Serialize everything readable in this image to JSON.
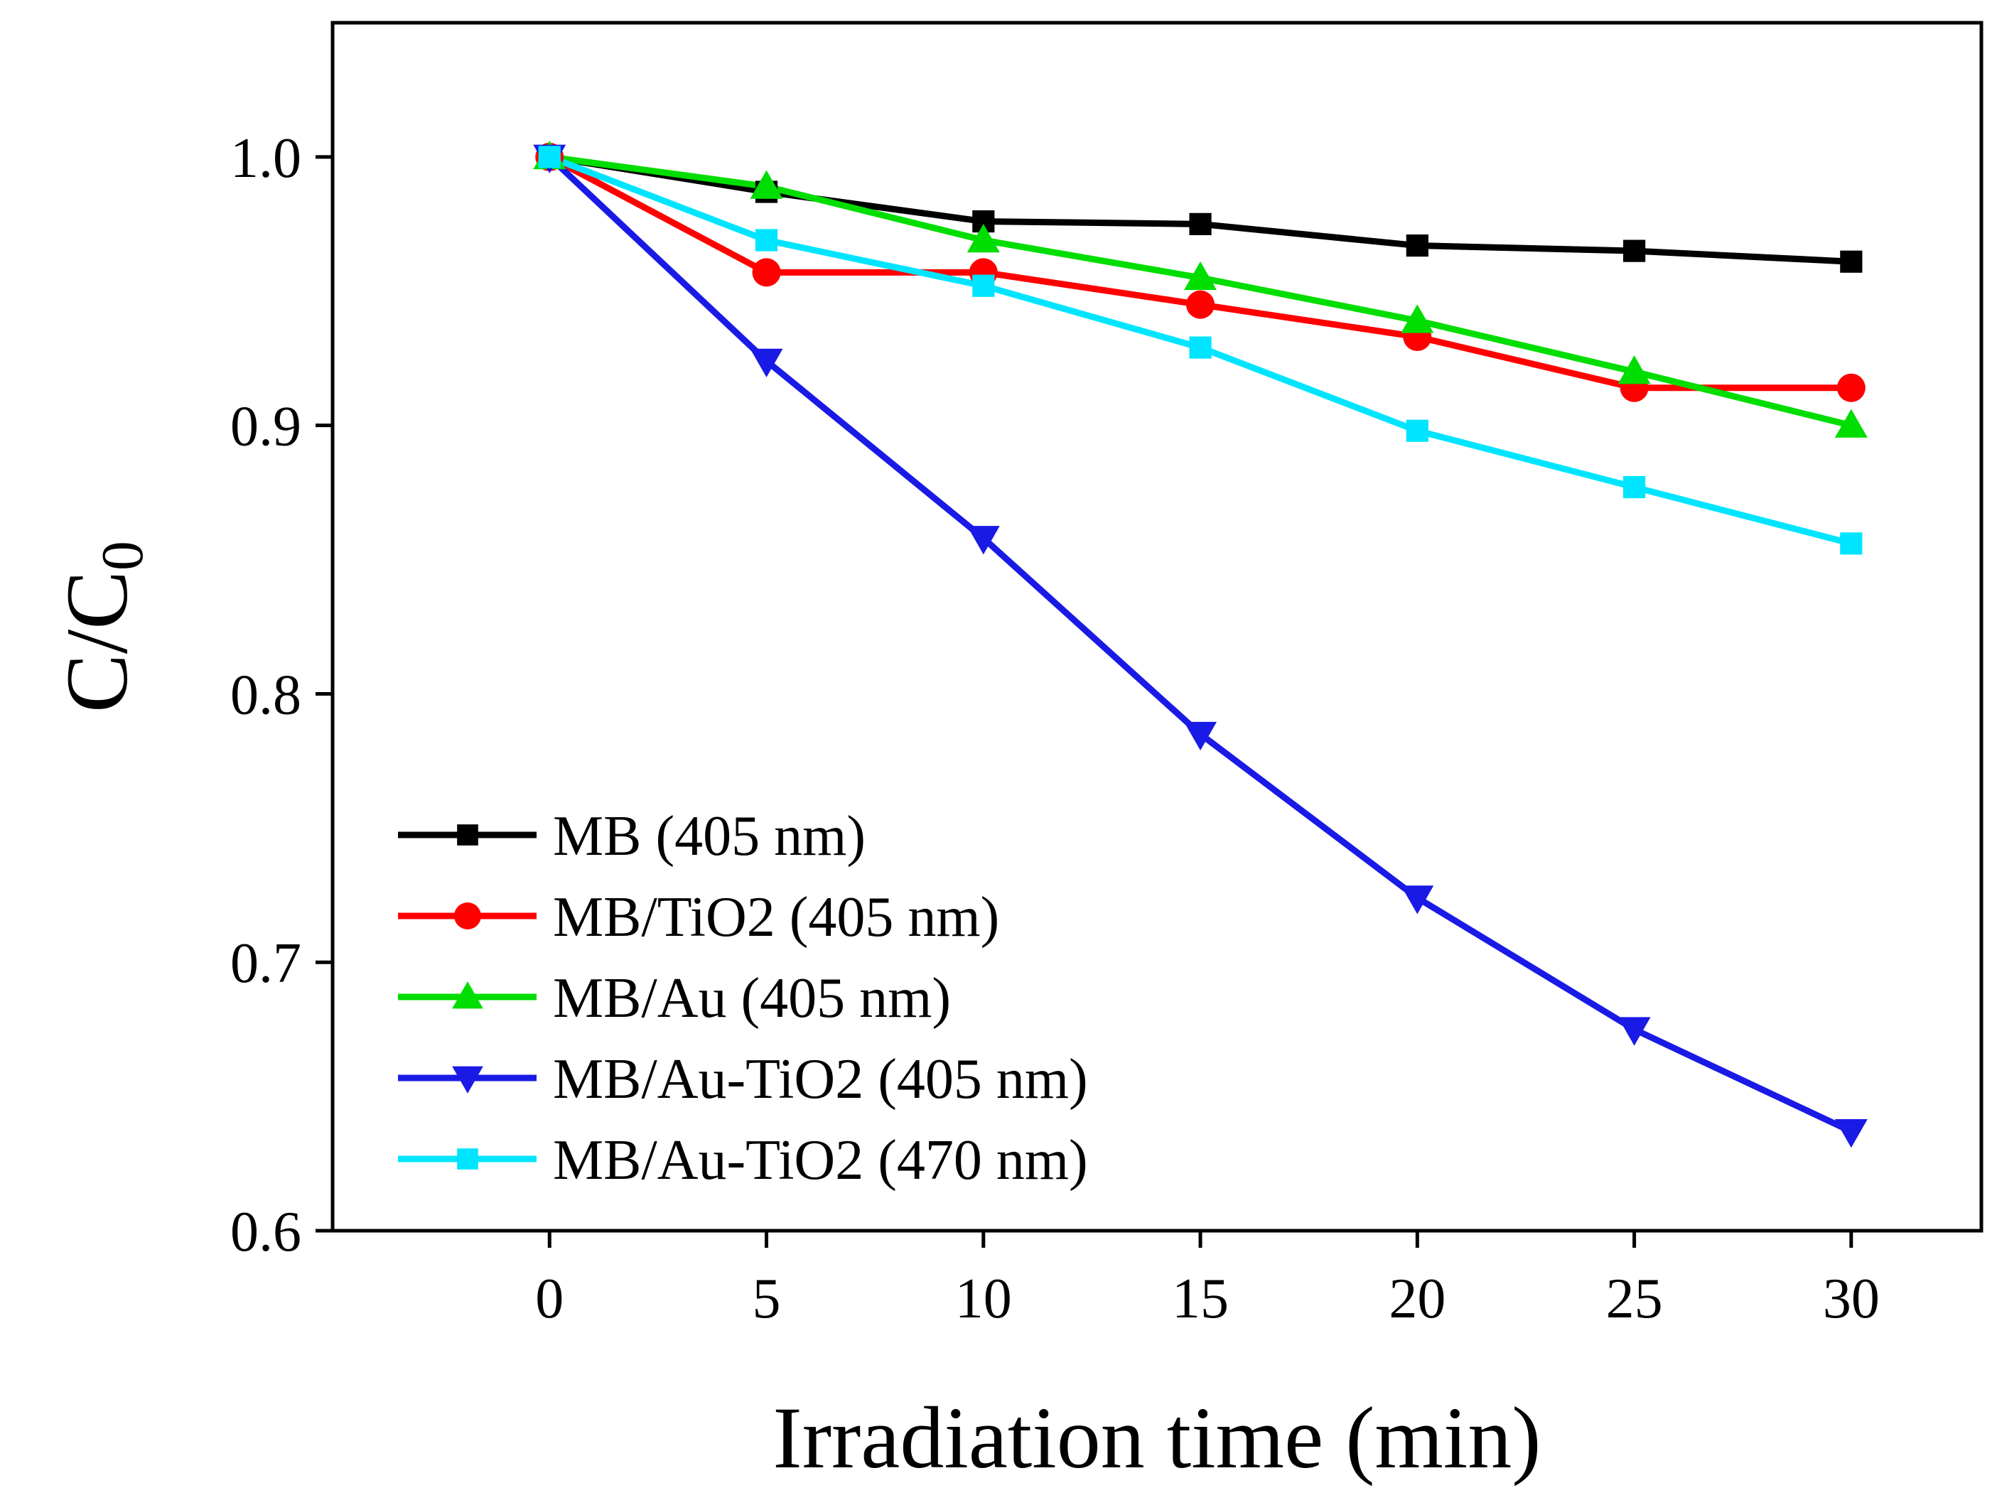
{
  "chart_data": {
    "type": "line",
    "title": "",
    "xlabel": "Irradiation time (min)",
    "ylabel": {
      "main": "C/C",
      "subscript": "0"
    },
    "xlim": [
      -5,
      33
    ],
    "ylim": [
      0.6,
      1.05
    ],
    "xticks": [
      0,
      5,
      10,
      15,
      20,
      25,
      30
    ],
    "xtick_labels": [
      "0",
      "5",
      "10",
      "15",
      "20",
      "25",
      "30"
    ],
    "yticks": [
      0.6,
      0.7,
      0.8,
      0.9,
      1.0
    ],
    "ytick_labels": [
      "0.6",
      "0.7",
      "0.8",
      "0.9",
      "1.0"
    ],
    "grid": false,
    "legend_position": "bottom-left",
    "x": [
      0,
      5,
      10,
      15,
      20,
      25,
      30
    ],
    "series": [
      {
        "name": "MB (405 nm)",
        "color": "#000000",
        "marker": "square",
        "values": [
          1.0,
          0.987,
          0.976,
          0.975,
          0.967,
          0.965,
          0.961
        ]
      },
      {
        "name": "MB/TiO2 (405 nm)",
        "color": "#ff0000",
        "marker": "circle",
        "values": [
          1.0,
          0.957,
          0.957,
          0.945,
          0.933,
          0.914,
          0.914
        ]
      },
      {
        "name": "MB/Au (405 nm)",
        "color": "#00dd00",
        "marker": "triangle-up",
        "values": [
          1.0,
          0.989,
          0.969,
          0.955,
          0.939,
          0.92,
          0.9
        ]
      },
      {
        "name": "MB/Au-TiO2 (405 nm)",
        "color": "#1a1ae6",
        "marker": "triangle-down",
        "values": [
          1.0,
          0.924,
          0.858,
          0.785,
          0.724,
          0.675,
          0.637
        ]
      },
      {
        "name": "MB/Au-TiO2 (470 nm)",
        "color": "#00e5ff",
        "marker": "square",
        "values": [
          1.0,
          0.969,
          0.952,
          0.929,
          0.898,
          0.877,
          0.856
        ]
      }
    ]
  }
}
